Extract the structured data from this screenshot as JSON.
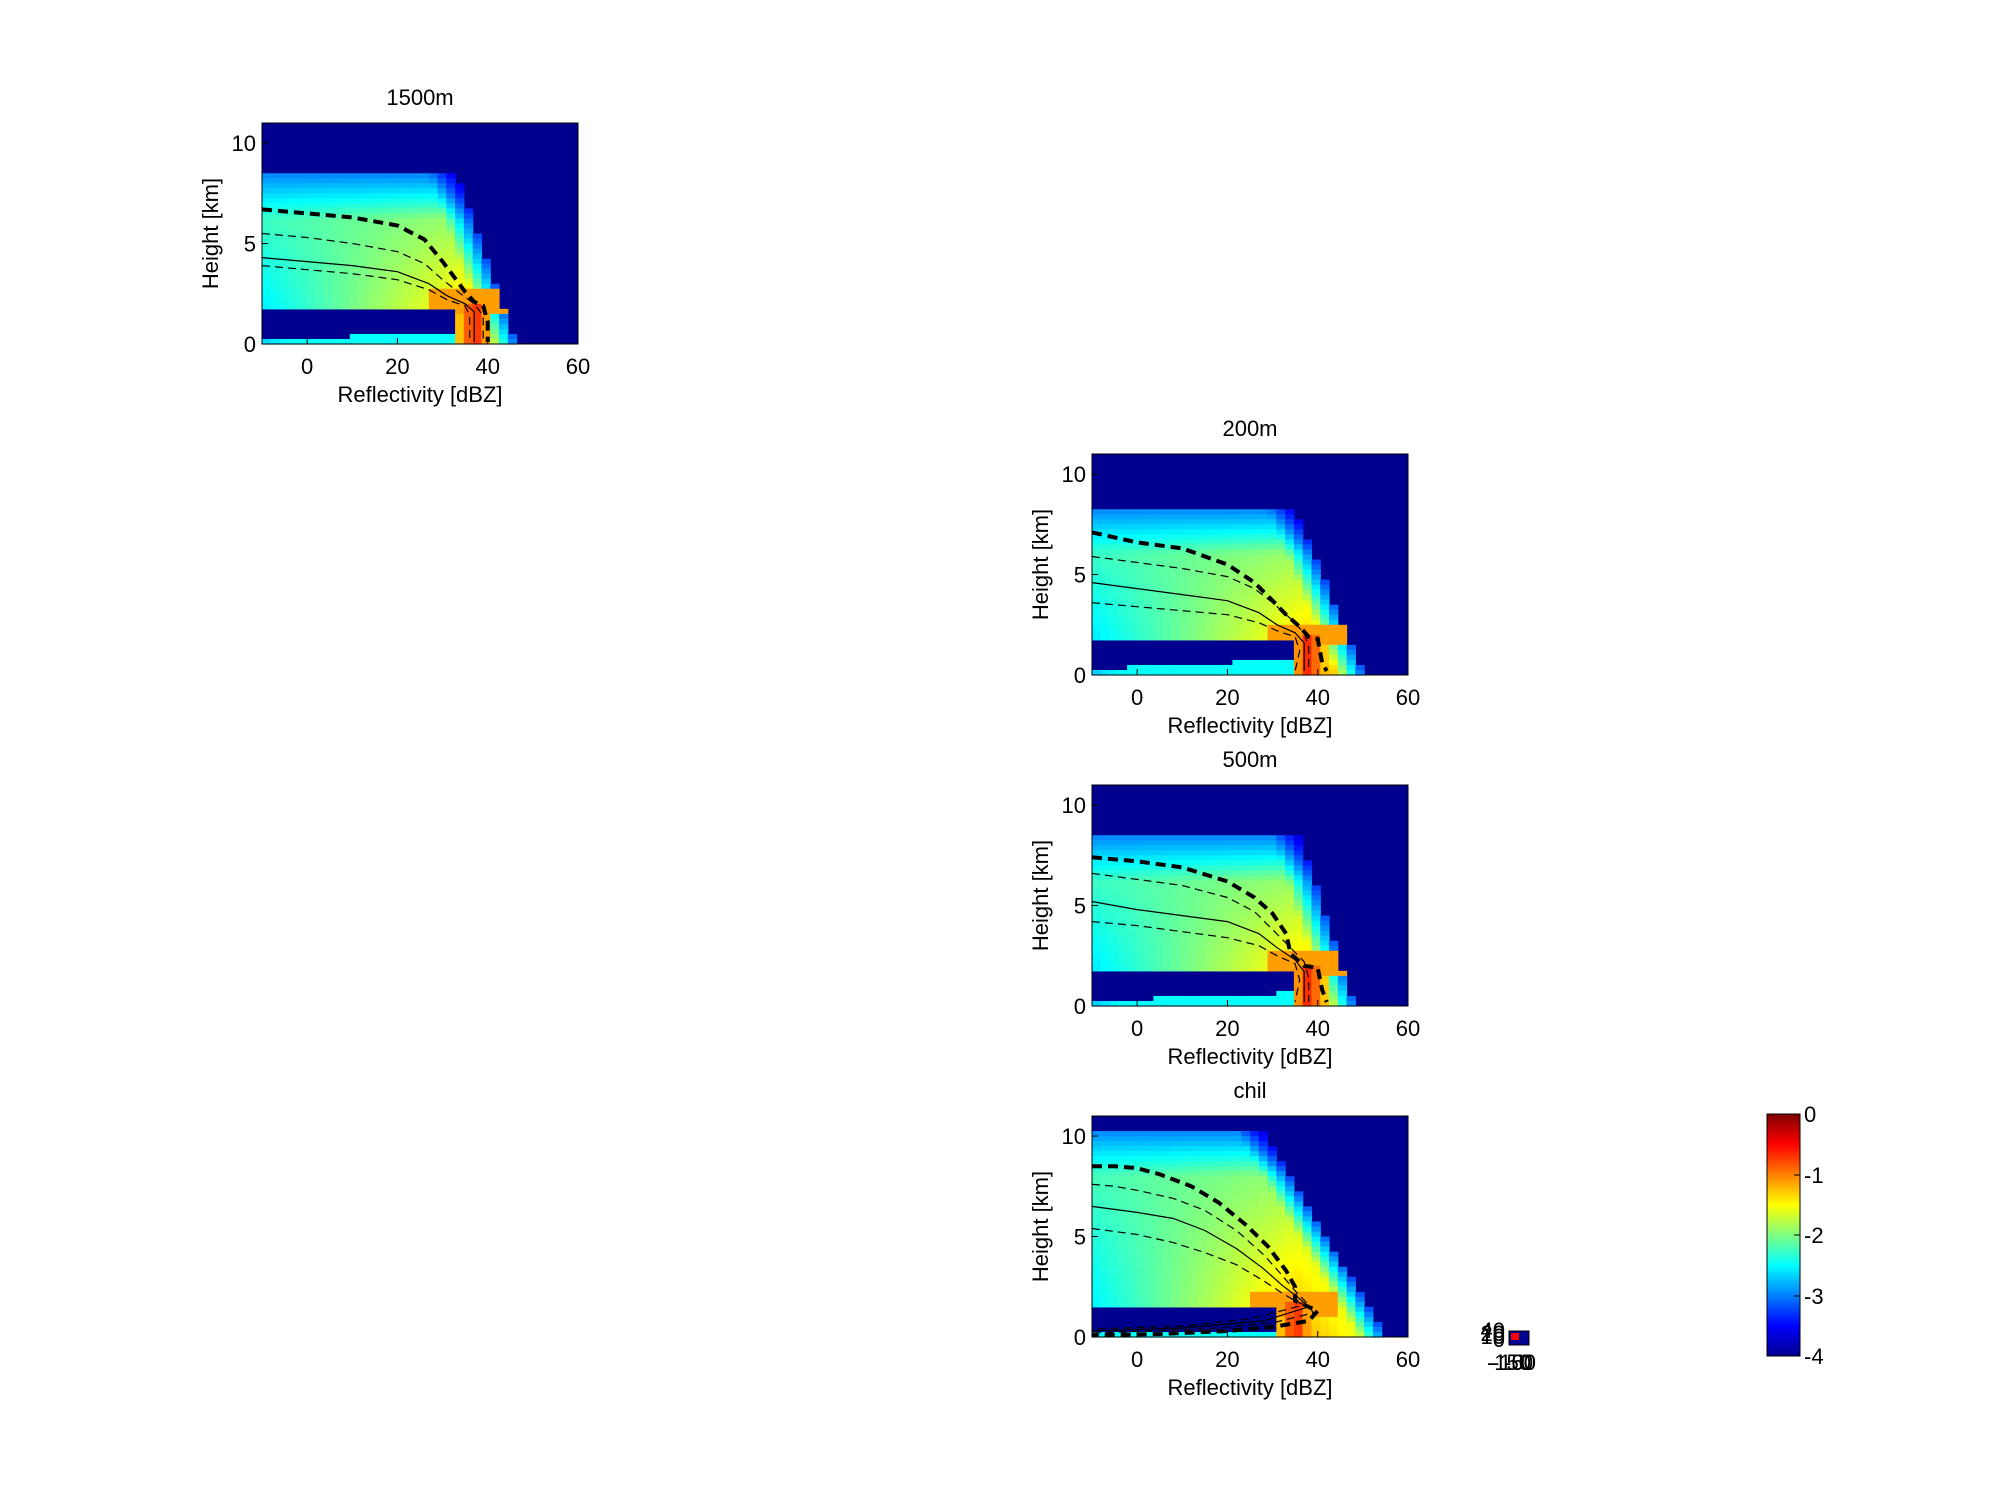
{
  "figure": {
    "background": "#ffffff",
    "field_color_low": "#00008f",
    "colormap": [
      "#00008f",
      "#0000ff",
      "#0080ff",
      "#00ffff",
      "#80ff80",
      "#ffff00",
      "#ff8000",
      "#ff0000",
      "#800000"
    ]
  },
  "chart_data": [
    {
      "type": "heatmap",
      "title": "1500m",
      "xlabel": "Reflectivity [dBZ]",
      "ylabel": "Height [km]",
      "xlim": [
        -10,
        60
      ],
      "ylim": [
        0,
        11
      ],
      "xticks": [
        "0",
        "20",
        "40",
        "60"
      ],
      "yticks": [
        "0",
        "5",
        "10"
      ],
      "field": {
        "top_km": 8.4,
        "cap_dbz": 33,
        "core_dbz": 37,
        "core_halfwidth": 4,
        "edge_dbz": 46,
        "bright_band_km": 2.1,
        "low_layer_km": 0.6
      },
      "series": [
        {
          "style": "thick-dashed",
          "points": [
            [
              -10,
              6.7
            ],
            [
              0,
              6.5
            ],
            [
              10,
              6.3
            ],
            [
              20,
              5.9
            ],
            [
              26,
              5.2
            ],
            [
              30,
              4.1
            ],
            [
              33,
              3.2
            ],
            [
              35,
              2.6
            ],
            [
              37,
              2.1
            ],
            [
              39,
              1.9
            ],
            [
              40,
              1.1
            ],
            [
              40,
              0.1
            ]
          ]
        },
        {
          "style": "dashed",
          "points": [
            [
              -10,
              5.5
            ],
            [
              0,
              5.3
            ],
            [
              10,
              5.0
            ],
            [
              20,
              4.6
            ],
            [
              26,
              4.0
            ],
            [
              30,
              3.2
            ],
            [
              34,
              2.5
            ],
            [
              37,
              2.0
            ],
            [
              39,
              1.4
            ],
            [
              39,
              0.1
            ]
          ]
        },
        {
          "style": "solid",
          "points": [
            [
              -10,
              4.3
            ],
            [
              0,
              4.1
            ],
            [
              10,
              3.9
            ],
            [
              20,
              3.6
            ],
            [
              27,
              3.0
            ],
            [
              31,
              2.4
            ],
            [
              35,
              2.0
            ],
            [
              37,
              1.6
            ],
            [
              37,
              0.1
            ]
          ]
        },
        {
          "style": "dashed",
          "points": [
            [
              -10,
              3.9
            ],
            [
              0,
              3.7
            ],
            [
              10,
              3.5
            ],
            [
              20,
              3.2
            ],
            [
              27,
              2.7
            ],
            [
              31,
              2.2
            ],
            [
              35,
              1.9
            ],
            [
              36,
              1.4
            ],
            [
              36,
              0.1
            ]
          ]
        }
      ]
    },
    {
      "type": "heatmap",
      "title": "200m",
      "xlabel": "Reflectivity [dBZ]",
      "ylabel": "Height [km]",
      "xlim": [
        -10,
        60
      ],
      "ylim": [
        0,
        11
      ],
      "xticks": [
        "0",
        "20",
        "40",
        "60"
      ],
      "yticks": [
        "0",
        "5",
        "10"
      ],
      "field": {
        "top_km": 8.2,
        "cap_dbz": 35,
        "core_dbz": 38,
        "core_halfwidth": 4,
        "edge_dbz": 50,
        "bright_band_km": 2.0,
        "low_layer_km": 0.8
      },
      "series": [
        {
          "style": "thick-dashed",
          "points": [
            [
              -10,
              7.1
            ],
            [
              0,
              6.6
            ],
            [
              10,
              6.3
            ],
            [
              20,
              5.5
            ],
            [
              26,
              4.6
            ],
            [
              30,
              3.7
            ],
            [
              33,
              3.0
            ],
            [
              36,
              2.4
            ],
            [
              38,
              1.9
            ],
            [
              40,
              1.8
            ],
            [
              41,
              0.6
            ],
            [
              42,
              0.2
            ]
          ]
        },
        {
          "style": "dashed",
          "points": [
            [
              -10,
              5.9
            ],
            [
              0,
              5.6
            ],
            [
              10,
              5.3
            ],
            [
              20,
              4.9
            ],
            [
              26,
              4.3
            ],
            [
              30,
              3.6
            ],
            [
              34,
              2.8
            ],
            [
              37,
              2.1
            ],
            [
              38,
              1.4
            ],
            [
              38,
              0.2
            ]
          ]
        },
        {
          "style": "solid",
          "points": [
            [
              -10,
              4.6
            ],
            [
              0,
              4.3
            ],
            [
              10,
              4.0
            ],
            [
              20,
              3.7
            ],
            [
              27,
              3.1
            ],
            [
              31,
              2.5
            ],
            [
              35,
              2.1
            ],
            [
              37,
              1.6
            ],
            [
              37,
              0.2
            ]
          ]
        },
        {
          "style": "dashed",
          "points": [
            [
              -10,
              3.6
            ],
            [
              0,
              3.4
            ],
            [
              10,
              3.2
            ],
            [
              20,
              3.0
            ],
            [
              27,
              2.6
            ],
            [
              31,
              2.2
            ],
            [
              35,
              1.9
            ],
            [
              36,
              1.2
            ],
            [
              35,
              0.2
            ]
          ]
        }
      ]
    },
    {
      "type": "heatmap",
      "title": "500m",
      "xlabel": "Reflectivity [dBZ]",
      "ylabel": "Height [km]",
      "xlim": [
        -10,
        60
      ],
      "ylim": [
        0,
        11
      ],
      "xticks": [
        "0",
        "20",
        "40",
        "60"
      ],
      "yticks": [
        "0",
        "5",
        "10"
      ],
      "field": {
        "top_km": 8.4,
        "cap_dbz": 36,
        "core_dbz": 38,
        "core_halfwidth": 4,
        "edge_dbz": 48,
        "bright_band_km": 2.1,
        "low_layer_km": 0.7
      },
      "series": [
        {
          "style": "thick-dashed",
          "points": [
            [
              -10,
              7.4
            ],
            [
              0,
              7.2
            ],
            [
              10,
              6.9
            ],
            [
              20,
              6.2
            ],
            [
              26,
              5.4
            ],
            [
              30,
              4.6
            ],
            [
              33,
              3.6
            ],
            [
              34,
              2.6
            ],
            [
              37,
              2.0
            ],
            [
              40,
              1.9
            ],
            [
              41,
              0.8
            ],
            [
              42,
              0.2
            ]
          ]
        },
        {
          "style": "dashed",
          "points": [
            [
              -10,
              6.6
            ],
            [
              0,
              6.3
            ],
            [
              10,
              6.0
            ],
            [
              20,
              5.4
            ],
            [
              26,
              4.7
            ],
            [
              30,
              3.8
            ],
            [
              34,
              2.9
            ],
            [
              37,
              2.2
            ],
            [
              38,
              1.4
            ],
            [
              38,
              0.2
            ]
          ]
        },
        {
          "style": "solid",
          "points": [
            [
              -10,
              5.2
            ],
            [
              0,
              4.8
            ],
            [
              10,
              4.5
            ],
            [
              20,
              4.2
            ],
            [
              27,
              3.6
            ],
            [
              31,
              2.9
            ],
            [
              35,
              2.3
            ],
            [
              37,
              1.7
            ],
            [
              37,
              0.2
            ]
          ]
        },
        {
          "style": "dashed",
          "points": [
            [
              -10,
              4.2
            ],
            [
              0,
              4.0
            ],
            [
              10,
              3.7
            ],
            [
              20,
              3.4
            ],
            [
              27,
              3.0
            ],
            [
              31,
              2.5
            ],
            [
              35,
              2.1
            ],
            [
              36,
              1.3
            ],
            [
              35,
              0.2
            ]
          ]
        }
      ]
    },
    {
      "type": "heatmap",
      "title": "chil",
      "xlabel": "Reflectivity [dBZ]",
      "ylabel": "Height [km]",
      "xlim": [
        -10,
        60
      ],
      "ylim": [
        0,
        11
      ],
      "xticks": [
        "0",
        "20",
        "40",
        "60"
      ],
      "yticks": [
        "0",
        "5",
        "10"
      ],
      "field": {
        "top_km": 10.2,
        "cap_dbz": 28,
        "core_dbz": 35,
        "core_halfwidth": 6,
        "edge_dbz": 55,
        "bright_band_km": 1.7,
        "low_layer_km": 0.4
      },
      "series": [
        {
          "style": "thick-dashed",
          "points": [
            [
              -10,
              8.5
            ],
            [
              -5,
              8.5
            ],
            [
              0,
              8.4
            ],
            [
              5,
              8.1
            ],
            [
              12,
              7.5
            ],
            [
              18,
              6.7
            ],
            [
              24,
              5.6
            ],
            [
              29,
              4.5
            ],
            [
              33,
              3.3
            ],
            [
              35,
              2.5
            ],
            [
              35,
              1.8
            ],
            [
              38,
              1.5
            ],
            [
              40,
              1.3
            ],
            [
              38,
              0.8
            ],
            [
              30,
              0.5
            ],
            [
              20,
              0.3
            ],
            [
              5,
              0.15
            ],
            [
              -10,
              0.1
            ]
          ]
        },
        {
          "style": "dashed",
          "points": [
            [
              -10,
              7.6
            ],
            [
              -5,
              7.5
            ],
            [
              0,
              7.3
            ],
            [
              8,
              6.9
            ],
            [
              15,
              6.3
            ],
            [
              22,
              5.3
            ],
            [
              28,
              4.1
            ],
            [
              32,
              3.1
            ],
            [
              35,
              2.3
            ],
            [
              38,
              1.6
            ],
            [
              39,
              1.2
            ],
            [
              30,
              0.7
            ],
            [
              15,
              0.4
            ],
            [
              -10,
              0.2
            ]
          ]
        },
        {
          "style": "solid",
          "points": [
            [
              -10,
              6.5
            ],
            [
              0,
              6.2
            ],
            [
              8,
              5.9
            ],
            [
              15,
              5.3
            ],
            [
              22,
              4.4
            ],
            [
              28,
              3.4
            ],
            [
              32,
              2.6
            ],
            [
              36,
              1.9
            ],
            [
              38,
              1.5
            ],
            [
              28,
              0.8
            ],
            [
              10,
              0.45
            ],
            [
              -10,
              0.3
            ]
          ]
        },
        {
          "style": "dashed",
          "points": [
            [
              -10,
              5.4
            ],
            [
              0,
              5.1
            ],
            [
              8,
              4.7
            ],
            [
              15,
              4.2
            ],
            [
              22,
              3.6
            ],
            [
              28,
              2.8
            ],
            [
              32,
              2.2
            ],
            [
              35,
              1.8
            ],
            [
              37,
              1.6
            ],
            [
              25,
              0.9
            ],
            [
              10,
              0.55
            ],
            [
              -10,
              0.4
            ]
          ]
        }
      ]
    }
  ],
  "small_axes": {
    "tick_labels": [
      "40",
      "20",
      "10",
      "0",
      "-150",
      "-100",
      "-50",
      "0"
    ]
  },
  "colorbar": {
    "ticks": [
      "0",
      "-1",
      "-2",
      "-3",
      "-4"
    ],
    "range": [
      -4,
      0
    ]
  }
}
